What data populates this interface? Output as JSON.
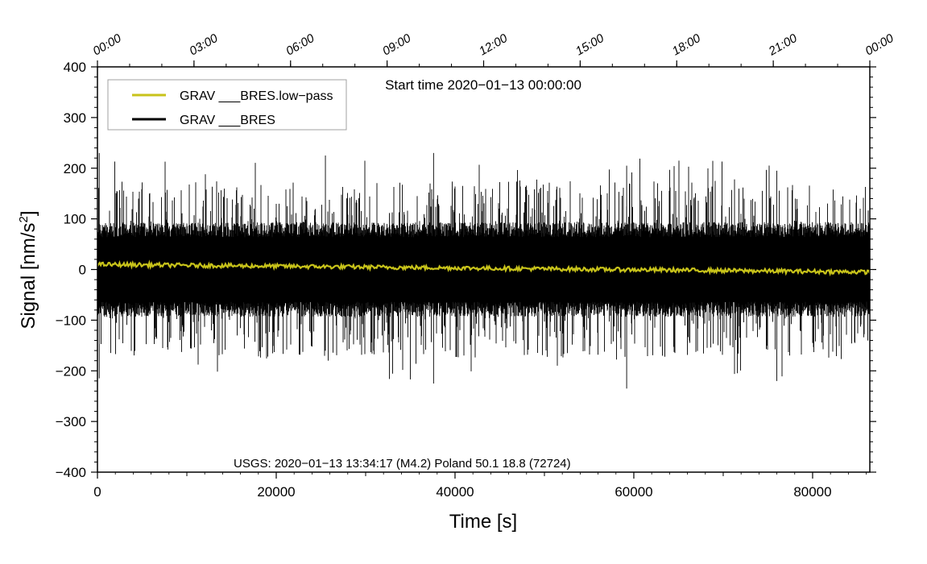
{
  "chart_data": {
    "type": "line",
    "title": "Start time 2020−01−13 00:00:00",
    "xlabel": "Time [s]",
    "ylabel_main": "Signal [nm/s",
    "ylabel_sup": "2",
    "ylabel_end": "]",
    "xlim": [
      0,
      86400
    ],
    "ylim": [
      -400,
      400
    ],
    "x_ticks": [
      0,
      20000,
      40000,
      60000,
      80000
    ],
    "x_tick_labels": [
      "0",
      "20000",
      "40000",
      "60000",
      "80000"
    ],
    "y_ticks": [
      -400,
      -300,
      -200,
      -100,
      0,
      100,
      200,
      300,
      400
    ],
    "y_tick_labels": [
      "−400",
      "−300",
      "−200",
      "−100",
      "0",
      "100",
      "200",
      "300",
      "400"
    ],
    "top_axis_labels": [
      "00:00",
      "03:00",
      "06:00",
      "09:00",
      "12:00",
      "15:00",
      "18:00",
      "21:00",
      "00:00"
    ],
    "top_axis_values_s": [
      0,
      10800,
      21600,
      32400,
      43200,
      54000,
      64800,
      75600,
      86400
    ],
    "legend_position": "top-left",
    "series": [
      {
        "name": "GRAV ___BRES.low−pass",
        "color": "#c8c31a",
        "kind": "trend",
        "start_value": 10,
        "end_value": -5,
        "noise_amplitude": 4
      },
      {
        "name": "GRAV ___BRES",
        "color": "#000000",
        "kind": "noise",
        "body_amplitude": 85,
        "spike_peak_max": 230,
        "spike_trough_min": -235
      }
    ],
    "annotation": "USGS: 2020−01−13 13:34:17 (M4.2) Poland 50.1 18.8 (72724)"
  }
}
